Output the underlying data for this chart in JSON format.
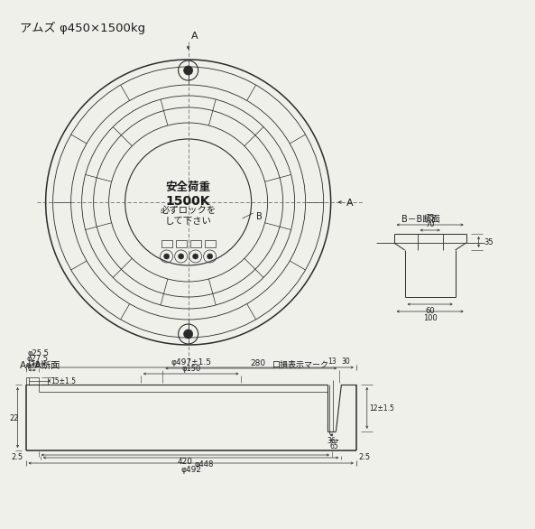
{
  "title": "アムズ φ450×1500kg",
  "bg_color": "#f0f0eb",
  "line_color": "#2a2a2a",
  "text_color": "#1a1a1a",
  "center_text1": "安全荷重",
  "center_text2": "1500K",
  "center_text3": "必ずロックを\nして下さい",
  "section_label_aa": "A－A断面",
  "section_label_bb": "B－B断面",
  "annotation_right": "口損表示マーク",
  "dim_497": "φ497±1.5",
  "dim_280": "280",
  "dim_150": "φ150",
  "dim_38": "φ38",
  "dim_27_5": "φ27.5",
  "dim_25_5": "φ25.5",
  "dim_420": "420",
  "dim_448": "φ448",
  "dim_492": "φ492",
  "dim_13": "13",
  "dim_30": "30",
  "dim_36": "36",
  "dim_65": "65",
  "dim_22": "22",
  "dim_2_5_L": "2.5",
  "dim_2_5_R": "2.5",
  "dim_12": "12±1.5",
  "dim_15": "15±1.5",
  "dim_bb_75": "75",
  "dim_bb_70": "70",
  "dim_bb_35": "35",
  "dim_bb_60": "60",
  "dim_bb_100": "100",
  "label_A": "A",
  "label_B": "B"
}
